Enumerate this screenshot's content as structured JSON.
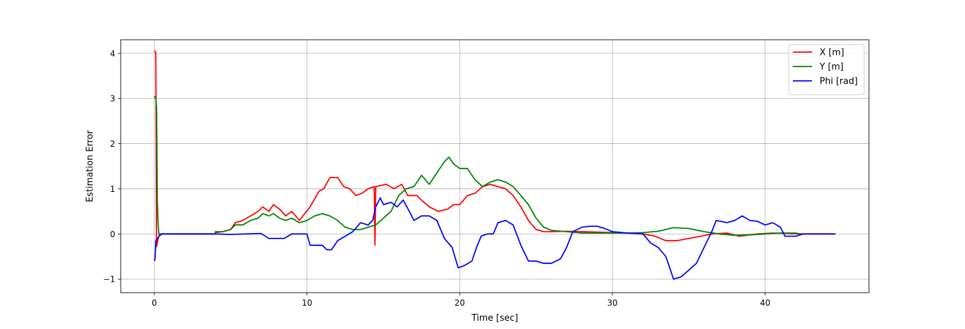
{
  "chart_data": {
    "type": "line",
    "xlabel": "Time [sec]",
    "ylabel": "Estimation Error",
    "xlim": [
      -2.2,
      46.8
    ],
    "ylim": [
      -1.3,
      4.3
    ],
    "xticks": [
      0,
      10,
      20,
      30,
      40
    ],
    "yticks": [
      -1,
      0,
      1,
      2,
      3,
      4
    ],
    "ytick_labels": [
      "−1",
      "0",
      "1",
      "2",
      "3",
      "4"
    ],
    "grid": true,
    "legend_position": "top-right",
    "series": [
      {
        "name": "X [m]",
        "color": "#ff0000",
        "points": [
          [
            0,
            4.05
          ],
          [
            0.05,
            4.05
          ],
          [
            0.1,
            4.0
          ],
          [
            0.15,
            -0.28
          ],
          [
            0.25,
            -0.1
          ],
          [
            0.35,
            0
          ],
          [
            1,
            0
          ],
          [
            2,
            0
          ],
          [
            3,
            0
          ],
          [
            4,
            0
          ],
          [
            4.0,
            0.03
          ],
          [
            4.5,
            0.05
          ],
          [
            5,
            0.1
          ],
          [
            5.3,
            0.25
          ],
          [
            5.8,
            0.3
          ],
          [
            6.3,
            0.4
          ],
          [
            6.8,
            0.5
          ],
          [
            7.1,
            0.6
          ],
          [
            7.5,
            0.5
          ],
          [
            7.8,
            0.65
          ],
          [
            8.2,
            0.55
          ],
          [
            8.6,
            0.4
          ],
          [
            9,
            0.5
          ],
          [
            9.5,
            0.3
          ],
          [
            10.2,
            0.6
          ],
          [
            10.8,
            0.95
          ],
          [
            11.1,
            1.0
          ],
          [
            11.5,
            1.25
          ],
          [
            12.0,
            1.25
          ],
          [
            12.4,
            1.05
          ],
          [
            12.8,
            1.0
          ],
          [
            13.2,
            0.85
          ],
          [
            13.6,
            0.9
          ],
          [
            14.0,
            1.0
          ],
          [
            14.4,
            1.05
          ],
          [
            14.45,
            -0.25
          ],
          [
            14.5,
            1.05
          ],
          [
            15.2,
            1.1
          ],
          [
            15.7,
            1.0
          ],
          [
            16.2,
            1.1
          ],
          [
            16.6,
            0.85
          ],
          [
            17.2,
            0.85
          ],
          [
            17.5,
            0.75
          ],
          [
            18.0,
            0.6
          ],
          [
            18.6,
            0.5
          ],
          [
            19.2,
            0.55
          ],
          [
            19.6,
            0.65
          ],
          [
            20.0,
            0.65
          ],
          [
            20.5,
            0.85
          ],
          [
            21.0,
            0.9
          ],
          [
            21.5,
            1.05
          ],
          [
            22.0,
            1.1
          ],
          [
            22.5,
            1.05
          ],
          [
            23.0,
            1.0
          ],
          [
            23.5,
            0.85
          ],
          [
            24.0,
            0.6
          ],
          [
            24.5,
            0.3
          ],
          [
            25.0,
            0.1
          ],
          [
            25.5,
            0.05
          ],
          [
            26,
            0.05
          ],
          [
            27,
            0.06
          ],
          [
            28,
            0.05
          ],
          [
            29,
            0.04
          ],
          [
            30,
            0.03
          ],
          [
            31,
            0.02
          ],
          [
            32,
            0.0
          ],
          [
            32.8,
            -0.05
          ],
          [
            33.5,
            -0.15
          ],
          [
            34.2,
            -0.15
          ],
          [
            35,
            -0.1
          ],
          [
            35.8,
            -0.05
          ],
          [
            36.5,
            0.0
          ],
          [
            37.5,
            0.02
          ],
          [
            38.3,
            -0.05
          ],
          [
            39,
            -0.02
          ],
          [
            39.5,
            0.0
          ],
          [
            40.5,
            0.02
          ],
          [
            41.5,
            0.01
          ],
          [
            42.3,
            0.0
          ],
          [
            43,
            0.0
          ],
          [
            44.6,
            0.0
          ]
        ]
      },
      {
        "name": "Y [m]",
        "color": "#008000",
        "points": [
          [
            0,
            3.05
          ],
          [
            0.1,
            3.0
          ],
          [
            0.15,
            2.8
          ],
          [
            0.2,
            0.7
          ],
          [
            0.25,
            0.2
          ],
          [
            0.3,
            0
          ],
          [
            1,
            0
          ],
          [
            2,
            0
          ],
          [
            3,
            0
          ],
          [
            4,
            0
          ],
          [
            4.0,
            0.05
          ],
          [
            4.5,
            0.05
          ],
          [
            5,
            0.1
          ],
          [
            5.3,
            0.2
          ],
          [
            5.8,
            0.2
          ],
          [
            6.3,
            0.3
          ],
          [
            6.8,
            0.35
          ],
          [
            7.1,
            0.45
          ],
          [
            7.5,
            0.4
          ],
          [
            7.8,
            0.45
          ],
          [
            8.2,
            0.35
          ],
          [
            8.6,
            0.3
          ],
          [
            9,
            0.35
          ],
          [
            9.5,
            0.25
          ],
          [
            10.0,
            0.3
          ],
          [
            10.5,
            0.4
          ],
          [
            11.0,
            0.45
          ],
          [
            11.5,
            0.4
          ],
          [
            12.0,
            0.3
          ],
          [
            12.5,
            0.15
          ],
          [
            13.0,
            0.1
          ],
          [
            13.5,
            0.1
          ],
          [
            14.0,
            0.15
          ],
          [
            14.5,
            0.2
          ],
          [
            15.0,
            0.35
          ],
          [
            15.5,
            0.5
          ],
          [
            16.0,
            0.85
          ],
          [
            16.5,
            1.0
          ],
          [
            17.0,
            1.05
          ],
          [
            17.5,
            1.3
          ],
          [
            18.0,
            1.1
          ],
          [
            18.5,
            1.35
          ],
          [
            19.0,
            1.6
          ],
          [
            19.3,
            1.7
          ],
          [
            19.6,
            1.55
          ],
          [
            20.0,
            1.45
          ],
          [
            20.5,
            1.45
          ],
          [
            21.0,
            1.2
          ],
          [
            21.5,
            1.05
          ],
          [
            22.0,
            1.15
          ],
          [
            22.5,
            1.2
          ],
          [
            23.0,
            1.15
          ],
          [
            23.5,
            1.05
          ],
          [
            24.0,
            0.85
          ],
          [
            24.5,
            0.65
          ],
          [
            25.0,
            0.35
          ],
          [
            25.5,
            0.15
          ],
          [
            26,
            0.08
          ],
          [
            27,
            0.05
          ],
          [
            28,
            0.02
          ],
          [
            29,
            0.02
          ],
          [
            30,
            0.02
          ],
          [
            31,
            0.02
          ],
          [
            32,
            0.03
          ],
          [
            33,
            0.06
          ],
          [
            34,
            0.14
          ],
          [
            35,
            0.12
          ],
          [
            36,
            0.05
          ],
          [
            37,
            0.0
          ],
          [
            38,
            -0.03
          ],
          [
            39,
            -0.02
          ],
          [
            40,
            0.0
          ],
          [
            41,
            0.02
          ],
          [
            42,
            0.02
          ],
          [
            42.3,
            0.0
          ]
        ]
      },
      {
        "name": "Phi [rad]",
        "color": "#0000ff",
        "points": [
          [
            0,
            -0.6
          ],
          [
            0.05,
            -0.55
          ],
          [
            0.1,
            -0.15
          ],
          [
            0.3,
            -0.05
          ],
          [
            0.5,
            0
          ],
          [
            1,
            0
          ],
          [
            2,
            0
          ],
          [
            3,
            0
          ],
          [
            4,
            0
          ],
          [
            5,
            -0.01
          ],
          [
            6,
            0.0
          ],
          [
            7,
            0.01
          ],
          [
            7.5,
            -0.1
          ],
          [
            8.5,
            -0.1
          ],
          [
            9,
            0.0
          ],
          [
            10,
            0.0
          ],
          [
            10.2,
            -0.25
          ],
          [
            11,
            -0.25
          ],
          [
            11.3,
            -0.35
          ],
          [
            11.6,
            -0.35
          ],
          [
            12.0,
            -0.15
          ],
          [
            12.5,
            -0.05
          ],
          [
            13.0,
            0.05
          ],
          [
            13.5,
            0.25
          ],
          [
            14.0,
            0.2
          ],
          [
            14.3,
            0.3
          ],
          [
            14.5,
            0.6
          ],
          [
            14.8,
            0.8
          ],
          [
            15.0,
            0.65
          ],
          [
            15.5,
            0.7
          ],
          [
            15.9,
            0.6
          ],
          [
            16.3,
            0.75
          ],
          [
            16.7,
            0.5
          ],
          [
            17.0,
            0.3
          ],
          [
            17.5,
            0.4
          ],
          [
            18.0,
            0.4
          ],
          [
            18.5,
            0.3
          ],
          [
            19.0,
            -0.1
          ],
          [
            19.5,
            -0.3
          ],
          [
            19.9,
            -0.75
          ],
          [
            20.3,
            -0.7
          ],
          [
            20.8,
            -0.6
          ],
          [
            21.1,
            -0.3
          ],
          [
            21.4,
            -0.05
          ],
          [
            21.8,
            0.0
          ],
          [
            22.2,
            0.0
          ],
          [
            22.5,
            0.25
          ],
          [
            23.0,
            0.3
          ],
          [
            23.5,
            0.2
          ],
          [
            24.0,
            -0.25
          ],
          [
            24.5,
            -0.6
          ],
          [
            25.0,
            -0.6
          ],
          [
            25.5,
            -0.65
          ],
          [
            26.0,
            -0.65
          ],
          [
            26.3,
            -0.6
          ],
          [
            26.6,
            -0.55
          ],
          [
            27.0,
            -0.3
          ],
          [
            27.4,
            0.05
          ],
          [
            28,
            0.15
          ],
          [
            28.5,
            0.17
          ],
          [
            29,
            0.17
          ],
          [
            29.5,
            0.12
          ],
          [
            30,
            0.05
          ],
          [
            31,
            0.02
          ],
          [
            32,
            0.0
          ],
          [
            32.5,
            -0.2
          ],
          [
            33.0,
            -0.3
          ],
          [
            33.5,
            -0.5
          ],
          [
            34.0,
            -1.0
          ],
          [
            34.5,
            -0.95
          ],
          [
            35.0,
            -0.8
          ],
          [
            35.5,
            -0.65
          ],
          [
            36.0,
            -0.3
          ],
          [
            36.5,
            0.05
          ],
          [
            36.8,
            0.3
          ],
          [
            37.5,
            0.25
          ],
          [
            38.0,
            0.3
          ],
          [
            38.5,
            0.4
          ],
          [
            39.0,
            0.3
          ],
          [
            39.5,
            0.28
          ],
          [
            40.0,
            0.2
          ],
          [
            40.5,
            0.25
          ],
          [
            41.0,
            0.15
          ],
          [
            41.3,
            -0.05
          ],
          [
            42.0,
            -0.05
          ],
          [
            42.5,
            0.0
          ],
          [
            43,
            0.0
          ],
          [
            44.6,
            0.0
          ]
        ]
      }
    ]
  }
}
